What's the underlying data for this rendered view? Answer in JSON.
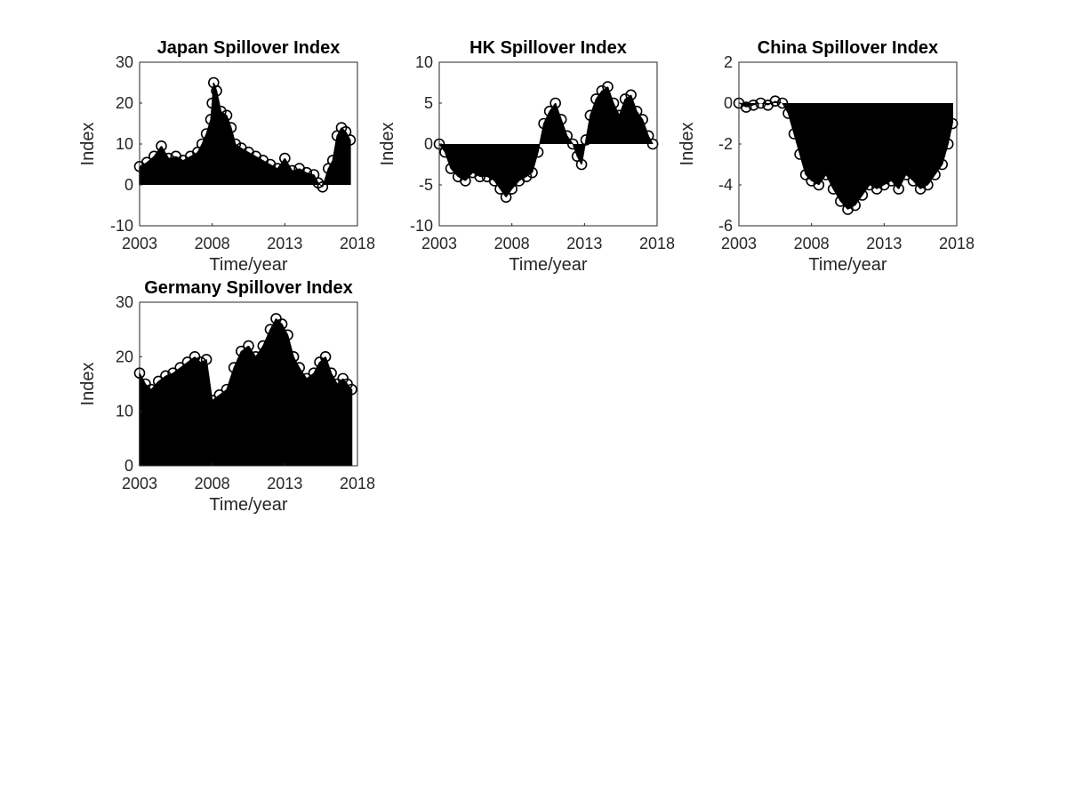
{
  "figure": {
    "background": "#ffffff",
    "ink": "#000000",
    "axis_color": "#262626"
  },
  "chart_data": [
    {
      "type": "area",
      "title": "Japan Spillover Index",
      "xlabel": "Time/year",
      "ylabel": "Index",
      "xlim": [
        2003,
        2018
      ],
      "ylim": [
        -10,
        30
      ],
      "xticks": [
        "2003",
        "2008",
        "2013",
        "2018"
      ],
      "yticks": [
        "-10",
        "0",
        "10",
        "20",
        "30"
      ],
      "marker": "circle",
      "fill_baseline": 0,
      "grid": false,
      "series": [
        {
          "x": [
            2003.0,
            2003.5,
            2004.0,
            2004.5,
            2005.0,
            2005.5,
            2006.0,
            2006.5,
            2007.0,
            2007.3,
            2007.6,
            2007.9,
            2008.0,
            2008.1,
            2008.3,
            2008.6,
            2009.0,
            2009.3,
            2009.6,
            2010.0,
            2010.5,
            2011.0,
            2011.5,
            2012.0,
            2012.5,
            2013.0,
            2013.5,
            2014.0,
            2014.5,
            2015.0,
            2015.3,
            2015.6,
            2016.0,
            2016.3,
            2016.6,
            2016.9,
            2017.2,
            2017.5
          ],
          "y": [
            4.5,
            5.5,
            7.0,
            9.5,
            6.5,
            7.0,
            6.0,
            7.0,
            8.0,
            10.0,
            12.5,
            16.0,
            20.0,
            25.0,
            23.0,
            18.0,
            17.0,
            14.0,
            10.0,
            9.0,
            8.0,
            7.0,
            6.0,
            5.0,
            4.0,
            6.5,
            3.5,
            4.0,
            3.0,
            2.5,
            0.5,
            -0.5,
            4.0,
            6.0,
            12.0,
            14.0,
            13.0,
            11.0
          ]
        }
      ]
    },
    {
      "type": "area",
      "title": "HK Spillover Index",
      "xlabel": "Time/year",
      "ylabel": "Index",
      "xlim": [
        2003,
        2018
      ],
      "ylim": [
        -10,
        10
      ],
      "xticks": [
        "2003",
        "2008",
        "2013",
        "2018"
      ],
      "yticks": [
        "-10",
        "-5",
        "0",
        "5",
        "10"
      ],
      "marker": "circle",
      "fill_baseline": 0,
      "grid": false,
      "series": [
        {
          "x": [
            2003.0,
            2003.4,
            2003.8,
            2004.3,
            2004.8,
            2005.3,
            2005.8,
            2006.3,
            2006.8,
            2007.2,
            2007.6,
            2008.0,
            2008.5,
            2009.0,
            2009.4,
            2009.8,
            2010.2,
            2010.6,
            2011.0,
            2011.4,
            2011.8,
            2012.2,
            2012.5,
            2012.8,
            2013.1,
            2013.4,
            2013.8,
            2014.2,
            2014.6,
            2015.0,
            2015.4,
            2015.8,
            2016.2,
            2016.6,
            2017.0,
            2017.4,
            2017.7
          ],
          "y": [
            0.0,
            -1.0,
            -3.0,
            -4.0,
            -4.5,
            -3.5,
            -4.0,
            -4.0,
            -4.5,
            -5.5,
            -6.5,
            -5.5,
            -4.5,
            -4.0,
            -3.5,
            -1.0,
            2.5,
            4.0,
            5.0,
            3.0,
            1.0,
            0.0,
            -1.5,
            -2.5,
            0.5,
            3.5,
            5.5,
            6.5,
            7.0,
            5.0,
            3.5,
            5.5,
            6.0,
            4.0,
            3.0,
            1.0,
            0.0
          ]
        }
      ]
    },
    {
      "type": "area",
      "title": "China Spillover Index",
      "xlabel": "Time/year",
      "ylabel": "Index",
      "xlim": [
        2003,
        2018
      ],
      "ylim": [
        -6,
        2
      ],
      "xticks": [
        "2003",
        "2008",
        "2013",
        "2018"
      ],
      "yticks": [
        "-6",
        "-4",
        "-2",
        "0",
        "2"
      ],
      "marker": "circle",
      "fill_baseline": 0,
      "grid": false,
      "series": [
        {
          "x": [
            2003.0,
            2003.5,
            2004.0,
            2004.5,
            2005.0,
            2005.5,
            2006.0,
            2006.4,
            2006.8,
            2007.2,
            2007.6,
            2008.0,
            2008.5,
            2009.0,
            2009.5,
            2010.0,
            2010.5,
            2011.0,
            2011.5,
            2012.0,
            2012.5,
            2013.0,
            2013.5,
            2014.0,
            2014.5,
            2015.0,
            2015.5,
            2016.0,
            2016.5,
            2017.0,
            2017.4,
            2017.7
          ],
          "y": [
            0.0,
            -0.2,
            -0.1,
            0.0,
            -0.1,
            0.1,
            0.0,
            -0.5,
            -1.5,
            -2.5,
            -3.5,
            -3.8,
            -4.0,
            -3.5,
            -4.2,
            -4.8,
            -5.2,
            -5.0,
            -4.5,
            -4.0,
            -4.2,
            -4.0,
            -3.8,
            -4.2,
            -3.5,
            -3.8,
            -4.2,
            -4.0,
            -3.5,
            -3.0,
            -2.0,
            -1.0
          ]
        }
      ]
    },
    {
      "type": "area",
      "title": "Germany Spillover Index",
      "xlabel": "Time/year",
      "ylabel": "Index",
      "xlim": [
        2003,
        2018
      ],
      "ylim": [
        0,
        30
      ],
      "xticks": [
        "2003",
        "2008",
        "2013",
        "2018"
      ],
      "yticks": [
        "0",
        "10",
        "20",
        "30"
      ],
      "marker": "circle",
      "fill_baseline": 0,
      "grid": false,
      "series": [
        {
          "x": [
            2003.0,
            2003.4,
            2003.8,
            2004.3,
            2004.8,
            2005.3,
            2005.8,
            2006.3,
            2006.8,
            2007.2,
            2007.6,
            2008.0,
            2008.5,
            2009.0,
            2009.5,
            2010.0,
            2010.5,
            2011.0,
            2011.5,
            2012.0,
            2012.4,
            2012.8,
            2013.2,
            2013.6,
            2014.0,
            2014.5,
            2015.0,
            2015.4,
            2015.8,
            2016.2,
            2016.6,
            2017.0,
            2017.3,
            2017.6
          ],
          "y": [
            17.0,
            15.0,
            14.0,
            15.5,
            16.5,
            17.0,
            18.0,
            19.0,
            20.0,
            19.0,
            19.5,
            12.0,
            13.0,
            14.0,
            18.0,
            21.0,
            22.0,
            20.0,
            22.0,
            25.0,
            27.0,
            26.0,
            24.0,
            20.0,
            18.0,
            16.0,
            17.0,
            19.0,
            20.0,
            17.0,
            15.0,
            16.0,
            15.0,
            14.0
          ]
        }
      ]
    }
  ]
}
